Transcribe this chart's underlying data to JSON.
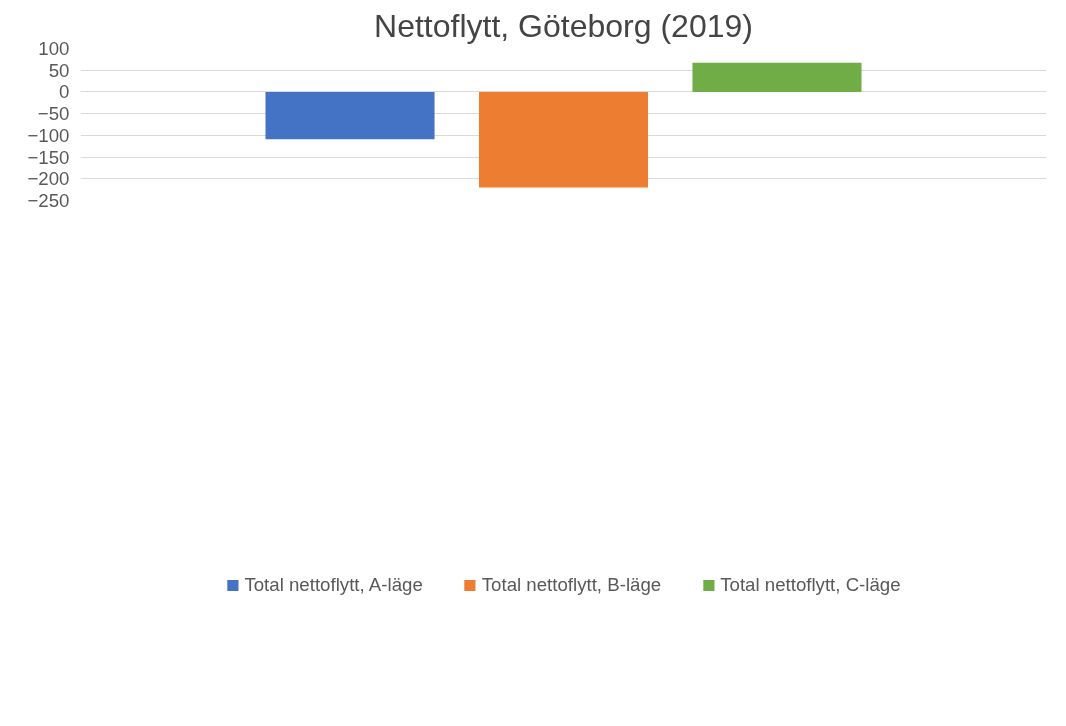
{
  "chart_data": {
    "type": "bar",
    "title": "Nettoflytt, Göteborg (2019)",
    "categories": [
      null
    ],
    "series": [
      {
        "name": "Total nettoflytt, A-läge",
        "color": "#4472c4",
        "values": [
          -109
        ]
      },
      {
        "name": "Total nettoflytt, B-läge",
        "color": "#ed7d31",
        "values": [
          -220
        ]
      },
      {
        "name": "Total nettoflytt, C-läge",
        "color": "#70ad47",
        "values": [
          67
        ]
      }
    ],
    "ylim": [
      -250,
      100
    ],
    "yticks": [
      -250,
      -200,
      -150,
      -100,
      -50,
      0,
      50,
      100
    ],
    "grid": "y",
    "legend": "bottom"
  }
}
